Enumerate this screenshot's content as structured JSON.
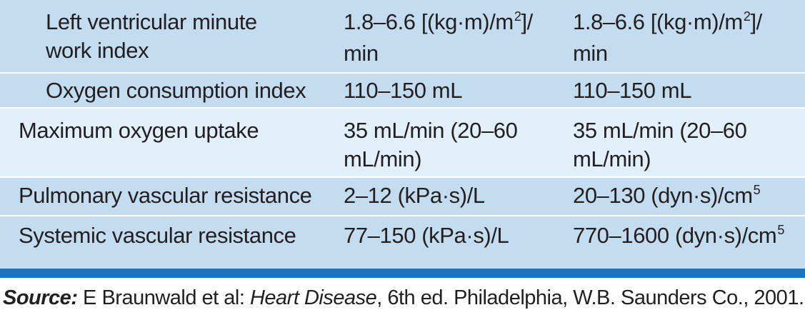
{
  "table": {
    "rows": [
      {
        "parameter": [
          "Left ventricular minute",
          "work index"
        ],
        "si_unit": [
          "1.8–6.6 [(kg·m)/m",
          "2",
          "]/",
          "min"
        ],
        "traditional_unit": [
          "1.8–6.6 [(kg·m)/m",
          "2",
          "]/",
          "min"
        ]
      },
      {
        "parameter": [
          "Oxygen consumption index"
        ],
        "si_unit": [
          "110–150 mL"
        ],
        "traditional_unit": [
          "110–150 mL"
        ]
      },
      {
        "parameter": [
          "Maximum oxygen uptake"
        ],
        "si_unit": [
          "35 mL/min (20–60",
          "mL/min)"
        ],
        "traditional_unit": [
          "35 mL/min (20–60",
          "mL/min)"
        ]
      },
      {
        "parameter": [
          "Pulmonary vascular resistance"
        ],
        "si_unit": [
          "2–12 (kPa·s)/L"
        ],
        "traditional_unit": [
          "20–130 (dyn·s)/cm",
          "5"
        ]
      },
      {
        "parameter": [
          "Systemic vascular resistance"
        ],
        "si_unit": [
          "77–150 (kPa·s)/L"
        ],
        "traditional_unit": [
          "770–1600 (dyn·s)/cm",
          "5"
        ]
      }
    ]
  },
  "source": {
    "label": "Source:",
    "authors": " E Braunwald et al: ",
    "title": "Heart Disease",
    "rest": ", 6th ed. Philadelphia, W.B. Saunders Co., 2001."
  },
  "colors": {
    "row_dark": "#c4dcef",
    "row_light": "#e1f0fa",
    "rule": "#1f73b8",
    "text": "#231f20"
  }
}
